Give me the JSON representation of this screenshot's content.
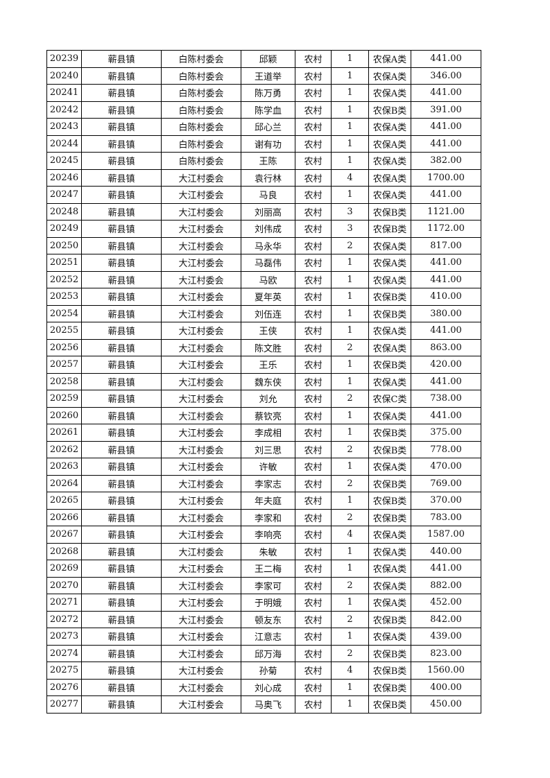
{
  "table": {
    "rows": [
      [
        "20239",
        "蕲县镇",
        "白陈村委会",
        "邱颖",
        "农村",
        "1",
        "农保A类",
        "441.00"
      ],
      [
        "20240",
        "蕲县镇",
        "白陈村委会",
        "王道举",
        "农村",
        "1",
        "农保A类",
        "346.00"
      ],
      [
        "20241",
        "蕲县镇",
        "白陈村委会",
        "陈万勇",
        "农村",
        "1",
        "农保A类",
        "441.00"
      ],
      [
        "20242",
        "蕲县镇",
        "白陈村委会",
        "陈学血",
        "农村",
        "1",
        "农保B类",
        "391.00"
      ],
      [
        "20243",
        "蕲县镇",
        "白陈村委会",
        "邱心兰",
        "农村",
        "1",
        "农保A类",
        "441.00"
      ],
      [
        "20244",
        "蕲县镇",
        "白陈村委会",
        "谢有功",
        "农村",
        "1",
        "农保A类",
        "441.00"
      ],
      [
        "20245",
        "蕲县镇",
        "白陈村委会",
        "王陈",
        "农村",
        "1",
        "农保A类",
        "382.00"
      ],
      [
        "20246",
        "蕲县镇",
        "大江村委会",
        "袁行林",
        "农村",
        "4",
        "农保A类",
        "1700.00"
      ],
      [
        "20247",
        "蕲县镇",
        "大江村委会",
        "马良",
        "农村",
        "1",
        "农保A类",
        "441.00"
      ],
      [
        "20248",
        "蕲县镇",
        "大江村委会",
        "刘丽高",
        "农村",
        "3",
        "农保B类",
        "1121.00"
      ],
      [
        "20249",
        "蕲县镇",
        "大江村委会",
        "刘伟成",
        "农村",
        "3",
        "农保B类",
        "1172.00"
      ],
      [
        "20250",
        "蕲县镇",
        "大江村委会",
        "马永华",
        "农村",
        "2",
        "农保A类",
        "817.00"
      ],
      [
        "20251",
        "蕲县镇",
        "大江村委会",
        "马磊伟",
        "农村",
        "1",
        "农保A类",
        "441.00"
      ],
      [
        "20252",
        "蕲县镇",
        "大江村委会",
        "马欧",
        "农村",
        "1",
        "农保A类",
        "441.00"
      ],
      [
        "20253",
        "蕲县镇",
        "大江村委会",
        "夏年英",
        "农村",
        "1",
        "农保B类",
        "410.00"
      ],
      [
        "20254",
        "蕲县镇",
        "大江村委会",
        "刘伍连",
        "农村",
        "1",
        "农保B类",
        "380.00"
      ],
      [
        "20255",
        "蕲县镇",
        "大江村委会",
        "王侠",
        "农村",
        "1",
        "农保A类",
        "441.00"
      ],
      [
        "20256",
        "蕲县镇",
        "大江村委会",
        "陈文胜",
        "农村",
        "2",
        "农保A类",
        "863.00"
      ],
      [
        "20257",
        "蕲县镇",
        "大江村委会",
        "王乐",
        "农村",
        "1",
        "农保B类",
        "420.00"
      ],
      [
        "20258",
        "蕲县镇",
        "大江村委会",
        "魏东侠",
        "农村",
        "1",
        "农保A类",
        "441.00"
      ],
      [
        "20259",
        "蕲县镇",
        "大江村委会",
        "刘允",
        "农村",
        "2",
        "农保C类",
        "738.00"
      ],
      [
        "20260",
        "蕲县镇",
        "大江村委会",
        "蔡钦亮",
        "农村",
        "1",
        "农保A类",
        "441.00"
      ],
      [
        "20261",
        "蕲县镇",
        "大江村委会",
        "李成相",
        "农村",
        "1",
        "农保B类",
        "375.00"
      ],
      [
        "20262",
        "蕲县镇",
        "大江村委会",
        "刘三思",
        "农村",
        "2",
        "农保B类",
        "778.00"
      ],
      [
        "20263",
        "蕲县镇",
        "大江村委会",
        "许敏",
        "农村",
        "1",
        "农保A类",
        "470.00"
      ],
      [
        "20264",
        "蕲县镇",
        "大江村委会",
        "李家志",
        "农村",
        "2",
        "农保B类",
        "769.00"
      ],
      [
        "20265",
        "蕲县镇",
        "大江村委会",
        "年夫庭",
        "农村",
        "1",
        "农保B类",
        "370.00"
      ],
      [
        "20266",
        "蕲县镇",
        "大江村委会",
        "李家和",
        "农村",
        "2",
        "农保B类",
        "783.00"
      ],
      [
        "20267",
        "蕲县镇",
        "大江村委会",
        "李响亮",
        "农村",
        "4",
        "农保A类",
        "1587.00"
      ],
      [
        "20268",
        "蕲县镇",
        "大江村委会",
        "朱敏",
        "农村",
        "1",
        "农保A类",
        "440.00"
      ],
      [
        "20269",
        "蕲县镇",
        "大江村委会",
        "王二梅",
        "农村",
        "1",
        "农保A类",
        "441.00"
      ],
      [
        "20270",
        "蕲县镇",
        "大江村委会",
        "李家可",
        "农村",
        "2",
        "农保A类",
        "882.00"
      ],
      [
        "20271",
        "蕲县镇",
        "大江村委会",
        "于明娥",
        "农村",
        "1",
        "农保A类",
        "452.00"
      ],
      [
        "20272",
        "蕲县镇",
        "大江村委会",
        "顿友东",
        "农村",
        "2",
        "农保B类",
        "842.00"
      ],
      [
        "20273",
        "蕲县镇",
        "大江村委会",
        "江意志",
        "农村",
        "1",
        "农保A类",
        "439.00"
      ],
      [
        "20274",
        "蕲县镇",
        "大江村委会",
        "邱万海",
        "农村",
        "2",
        "农保B类",
        "823.00"
      ],
      [
        "20275",
        "蕲县镇",
        "大江村委会",
        "孙菊",
        "农村",
        "4",
        "农保B类",
        "1560.00"
      ],
      [
        "20276",
        "蕲县镇",
        "大江村委会",
        "刘心成",
        "农村",
        "1",
        "农保B类",
        "400.00"
      ],
      [
        "20277",
        "蕲县镇",
        "大江村委会",
        "马奥飞",
        "农村",
        "1",
        "农保B类",
        "450.00"
      ]
    ]
  }
}
